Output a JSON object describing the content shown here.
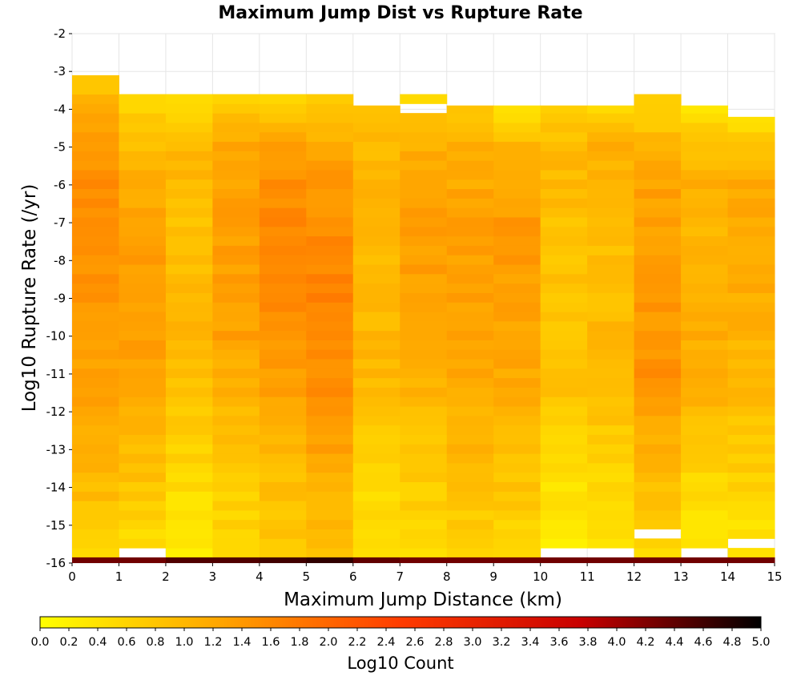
{
  "chart_data": {
    "type": "heatmap",
    "title": "Maximum Jump Dist vs Rupture Rate",
    "xlabel": "Maximum Jump Distance (km)",
    "ylabel": "Log10 Rupture Rate (/yr)",
    "xlim": [
      0,
      15
    ],
    "ylim": [
      -16,
      -2
    ],
    "x_ticks": [
      "0",
      "1",
      "2",
      "3",
      "4",
      "5",
      "6",
      "7",
      "8",
      "9",
      "10",
      "11",
      "12",
      "13",
      "14",
      "15"
    ],
    "y_ticks": [
      "-2",
      "-3",
      "-4",
      "-5",
      "-6",
      "-7",
      "-8",
      "-9",
      "-10",
      "-11",
      "-12",
      "-13",
      "-14",
      "-15",
      "-16"
    ],
    "bin_width_x": 1,
    "bin_height_y": 0.25,
    "colorbar": {
      "label": "Log10 Count",
      "range": [
        0,
        5
      ],
      "ticks": [
        "0.0",
        "0.2",
        "0.4",
        "0.6",
        "0.8",
        "1.0",
        "1.2",
        "1.4",
        "1.6",
        "1.8",
        "2.0",
        "2.2",
        "2.4",
        "2.6",
        "2.8",
        "3.0",
        "3.2",
        "3.4",
        "3.6",
        "3.8",
        "4.0",
        "4.2",
        "4.4",
        "4.6",
        "4.8",
        "5.0"
      ],
      "colors": [
        "#ffff00",
        "#ffa500",
        "#ff3c00",
        "#c80000",
        "#000000"
      ],
      "position": "bottom"
    },
    "columns": [
      {
        "x_bin": [
          0,
          1
        ],
        "bottom_row_value": 4.3,
        "top": -3.0,
        "gaps": [],
        "profile": [
          [
            -16,
            0.6
          ],
          [
            -15,
            0.8
          ],
          [
            -12,
            1.2
          ],
          [
            -9,
            1.4
          ],
          [
            -6,
            1.55
          ],
          [
            -4,
            1.2
          ],
          [
            -3,
            0.6
          ]
        ]
      },
      {
        "x_bin": [
          1,
          2
        ],
        "bottom_row_value": 4.3,
        "top": -3.6,
        "gaps": [
          -15.75
        ],
        "profile": [
          [
            -16,
            0.4
          ],
          [
            -14,
            0.8
          ],
          [
            -11,
            1.3
          ],
          [
            -8,
            1.3
          ],
          [
            -6,
            1.2
          ],
          [
            -4,
            0.7
          ],
          [
            -3.6,
            0.6
          ]
        ]
      },
      {
        "x_bin": [
          2,
          3
        ],
        "bottom_row_value": 4.5,
        "top": -3.6,
        "gaps": [],
        "profile": [
          [
            -16,
            0.3
          ],
          [
            -13,
            0.6
          ],
          [
            -10,
            1.0
          ],
          [
            -7,
            0.9
          ],
          [
            -5,
            1.0
          ],
          [
            -4,
            0.6
          ],
          [
            -3.6,
            0.3
          ]
        ]
      },
      {
        "x_bin": [
          3,
          4
        ],
        "bottom_row_value": 4.5,
        "top": -3.6,
        "gaps": [],
        "profile": [
          [
            -16,
            0.5
          ],
          [
            -13,
            0.8
          ],
          [
            -10,
            1.3
          ],
          [
            -7,
            1.3
          ],
          [
            -5,
            1.2
          ],
          [
            -4,
            0.8
          ],
          [
            -3.6,
            0.7
          ]
        ]
      },
      {
        "x_bin": [
          4,
          5
        ],
        "bottom_row_value": 4.6,
        "top": -3.6,
        "gaps": [],
        "profile": [
          [
            -16,
            0.7
          ],
          [
            -13,
            1.0
          ],
          [
            -10,
            1.5
          ],
          [
            -7,
            1.6
          ],
          [
            -5,
            1.4
          ],
          [
            -4,
            0.7
          ],
          [
            -3.6,
            0.4
          ]
        ]
      },
      {
        "x_bin": [
          5,
          6
        ],
        "bottom_row_value": 4.7,
        "top": -3.6,
        "gaps": [],
        "profile": [
          [
            -16,
            0.8
          ],
          [
            -14,
            1.1
          ],
          [
            -11,
            1.55
          ],
          [
            -9,
            1.7
          ],
          [
            -6,
            1.4
          ],
          [
            -4,
            0.9
          ],
          [
            -3.6,
            0.5
          ]
        ]
      },
      {
        "x_bin": [
          6,
          7
        ],
        "bottom_row_value": 4.4,
        "top": -3.9,
        "gaps": [],
        "profile": [
          [
            -16,
            0.4
          ],
          [
            -14,
            0.5
          ],
          [
            -11,
            1.0
          ],
          [
            -8,
            1.0
          ],
          [
            -5,
            1.0
          ],
          [
            -4,
            0.8
          ],
          [
            -3.9,
            0.7
          ]
        ]
      },
      {
        "x_bin": [
          7,
          8
        ],
        "bottom_row_value": 4.3,
        "top": -3.6,
        "gaps": [
          -4.0
        ],
        "profile": [
          [
            -16,
            0.5
          ],
          [
            -13,
            0.8
          ],
          [
            -10,
            1.3
          ],
          [
            -7,
            1.3
          ],
          [
            -5,
            1.1
          ],
          [
            -4.2,
            0.8
          ],
          [
            -3.6,
            0.4
          ]
        ]
      },
      {
        "x_bin": [
          8,
          9
        ],
        "bottom_row_value": 4.3,
        "top": -3.9,
        "gaps": [],
        "profile": [
          [
            -16,
            0.6
          ],
          [
            -13,
            1.0
          ],
          [
            -10,
            1.3
          ],
          [
            -7,
            1.3
          ],
          [
            -5,
            1.1
          ],
          [
            -4,
            0.7
          ],
          [
            -3.9,
            0.6
          ]
        ]
      },
      {
        "x_bin": [
          9,
          10
        ],
        "bottom_row_value": 4.3,
        "top": -3.9,
        "gaps": [],
        "profile": [
          [
            -16,
            0.5
          ],
          [
            -14,
            0.8
          ],
          [
            -11,
            1.2
          ],
          [
            -7,
            1.4
          ],
          [
            -5,
            1.0
          ],
          [
            -4,
            0.5
          ],
          [
            -3.9,
            0.2
          ]
        ]
      },
      {
        "x_bin": [
          10,
          11
        ],
        "bottom_row_value": 4.3,
        "top": -3.9,
        "gaps": [
          -15.75
        ],
        "profile": [
          [
            -16,
            0.3
          ],
          [
            -14,
            0.4
          ],
          [
            -11,
            0.9
          ],
          [
            -8,
            0.8
          ],
          [
            -5,
            1.0
          ],
          [
            -4,
            0.6
          ],
          [
            -3.9,
            0.5
          ]
        ]
      },
      {
        "x_bin": [
          11,
          12
        ],
        "bottom_row_value": 4.3,
        "top": -3.9,
        "gaps": [
          -15.75
        ],
        "profile": [
          [
            -16,
            0.3
          ],
          [
            -14,
            0.5
          ],
          [
            -11,
            1.0
          ],
          [
            -8,
            0.9
          ],
          [
            -5,
            1.1
          ],
          [
            -4,
            0.6
          ],
          [
            -3.9,
            0.5
          ]
        ]
      },
      {
        "x_bin": [
          12,
          13
        ],
        "bottom_row_value": 4.3,
        "top": -3.6,
        "gaps": [
          -15.25
        ],
        "profile": [
          [
            -16,
            0.5
          ],
          [
            -14,
            0.9
          ],
          [
            -11,
            1.5
          ],
          [
            -8,
            1.3
          ],
          [
            -6,
            1.3
          ],
          [
            -4,
            0.7
          ],
          [
            -3.6,
            0.5
          ]
        ]
      },
      {
        "x_bin": [
          13,
          14
        ],
        "bottom_row_value": 4.3,
        "top": -3.9,
        "gaps": [
          -15.75
        ],
        "profile": [
          [
            -16,
            0.4
          ],
          [
            -14,
            0.5
          ],
          [
            -11,
            1.2
          ],
          [
            -8,
            1.0
          ],
          [
            -6,
            1.1
          ],
          [
            -4.5,
            0.6
          ],
          [
            -3.9,
            0.3
          ]
        ]
      },
      {
        "x_bin": [
          14,
          15
        ],
        "bottom_row_value": 4.3,
        "top": -4.2,
        "gaps": [
          -15.5
        ],
        "profile": [
          [
            -16,
            0.3
          ],
          [
            -14,
            0.6
          ],
          [
            -11,
            1.0
          ],
          [
            -8,
            1.2
          ],
          [
            -6,
            1.2
          ],
          [
            -4.5,
            0.6
          ],
          [
            -4.2,
            0.3
          ]
        ]
      }
    ]
  }
}
